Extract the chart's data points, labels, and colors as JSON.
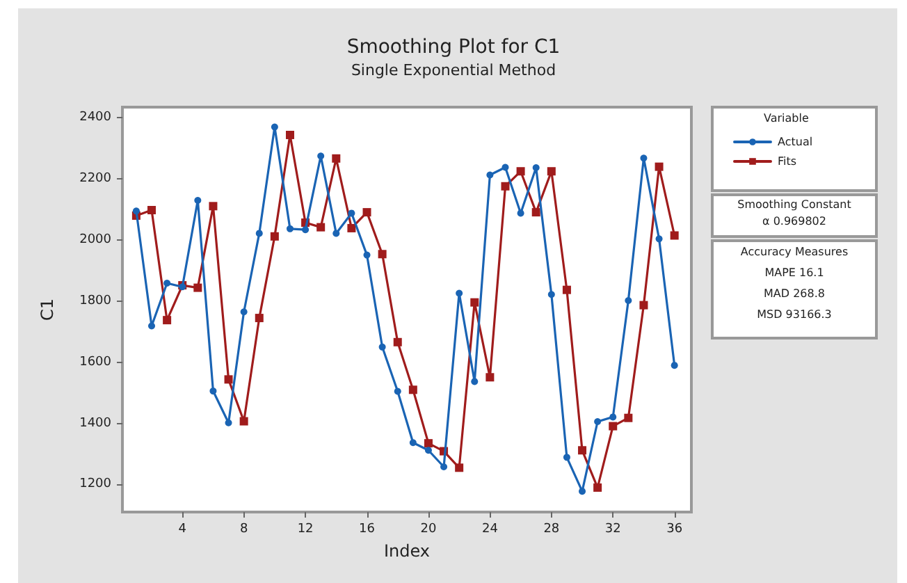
{
  "chart_data": {
    "type": "line",
    "title": "Smoothing Plot for C1",
    "subtitle": "Single Exponential Method",
    "xlabel": "Index",
    "ylabel": "C1",
    "legend_title": "Variable",
    "x": [
      1,
      2,
      3,
      4,
      5,
      6,
      7,
      8,
      9,
      10,
      11,
      12,
      13,
      14,
      15,
      16,
      17,
      18,
      19,
      20,
      21,
      22,
      23,
      24,
      25,
      26,
      27,
      28,
      29,
      30,
      31,
      32,
      33,
      34,
      35,
      36
    ],
    "series": [
      {
        "name": "Actual",
        "color": "#1a64b4",
        "marker": "circle",
        "values": [
          2095,
          1719,
          1859,
          1847,
          2130,
          1506,
          1402,
          1765,
          2022,
          2370,
          2037,
          2034,
          2275,
          2022,
          2088,
          1951,
          1650,
          1505,
          1337,
          1312,
          1258,
          1826,
          1537,
          2213,
          2238,
          2088,
          2237,
          1822,
          1289,
          1178,
          1406,
          1421,
          1802,
          2268,
          2004,
          1590
        ]
      },
      {
        "name": "Fits",
        "color": "#a01c1c",
        "marker": "square",
        "values": [
          2080,
          2098,
          1738,
          1852,
          1844,
          2111,
          1544,
          1407,
          1745,
          2012,
          2344,
          2057,
          2042,
          2267,
          2039,
          2091,
          1954,
          1666,
          1510,
          1335,
          1309,
          1255,
          1796,
          1551,
          2176,
          2225,
          2091,
          2225,
          1837,
          1312,
          1190,
          1391,
          1418,
          1787,
          2240,
          2015
        ]
      }
    ],
    "xlim": [
      0.1,
      37.1
    ],
    "xticks": [
      4,
      8,
      12,
      16,
      20,
      24,
      28,
      32,
      36
    ],
    "ylim": [
      1110,
      2435
    ],
    "yticks": [
      1200,
      1400,
      1600,
      1800,
      2000,
      2200,
      2400
    ],
    "grid": false,
    "legend": "right",
    "line_style": "solid",
    "annotations": [
      "Smoothing Constant",
      "α 0.969802",
      "Accuracy Measures",
      "MAPE 16.1",
      "MAD 268.8",
      "MSD 93166.3"
    ]
  }
}
